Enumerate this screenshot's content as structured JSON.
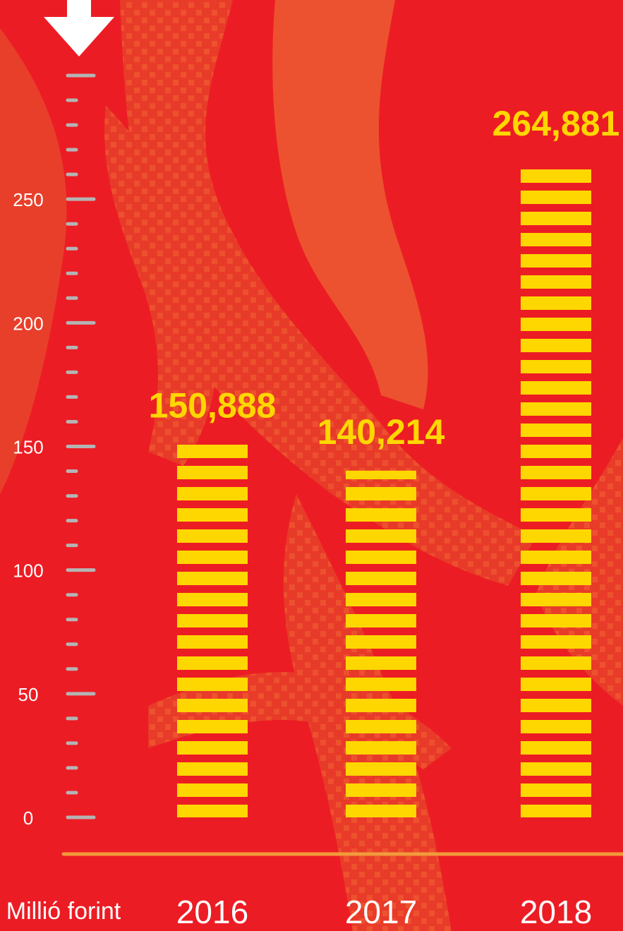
{
  "chart_data": {
    "type": "bar",
    "y_label": "Millió forint",
    "categories": [
      "2016",
      "2017",
      "2018"
    ],
    "values": [
      150.888,
      140.214,
      264.881
    ],
    "value_labels": [
      "150,888",
      "140,214",
      "264,881"
    ],
    "color": "#ffd700",
    "ylim": [
      0,
      300
    ],
    "yticks": [
      0,
      50,
      100,
      150,
      200,
      250
    ],
    "minor_yticks": [
      10,
      20,
      30,
      40,
      60,
      70,
      80,
      90,
      110,
      120,
      130,
      140,
      160,
      170,
      180,
      190,
      210,
      220,
      230,
      240,
      260,
      270,
      280,
      290,
      300
    ]
  }
}
